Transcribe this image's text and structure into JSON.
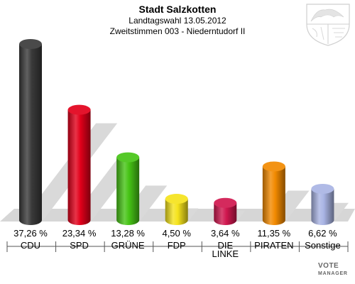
{
  "header": {
    "title": "Stadt Salzkotten",
    "subtitle1": "Landtagswahl 13.05.2012",
    "subtitle2": "Zweitstimmen 003 - Niederntudorf II"
  },
  "watermark": {
    "line1": "VOTE",
    "line2": "MANAGER"
  },
  "chart_data": {
    "type": "bar",
    "categories": [
      "CDU",
      "SPD",
      "GRÜNE",
      "FDP",
      "DIE LINKE",
      "PIRATEN",
      "Sonstige"
    ],
    "values": [
      37.26,
      23.34,
      13.28,
      4.5,
      3.64,
      11.35,
      6.62
    ],
    "value_labels": [
      "37,26 %",
      "23,34 %",
      "13,28 %",
      "4,50 %",
      "3,64 %",
      "11,35 %",
      "6,62 %"
    ],
    "colors": [
      "#3a3a3a",
      "#e2001a",
      "#46c415",
      "#f5e31c",
      "#d0174f",
      "#f28a00",
      "#a9b4e4"
    ],
    "ylim": [
      0,
      37.26
    ]
  }
}
